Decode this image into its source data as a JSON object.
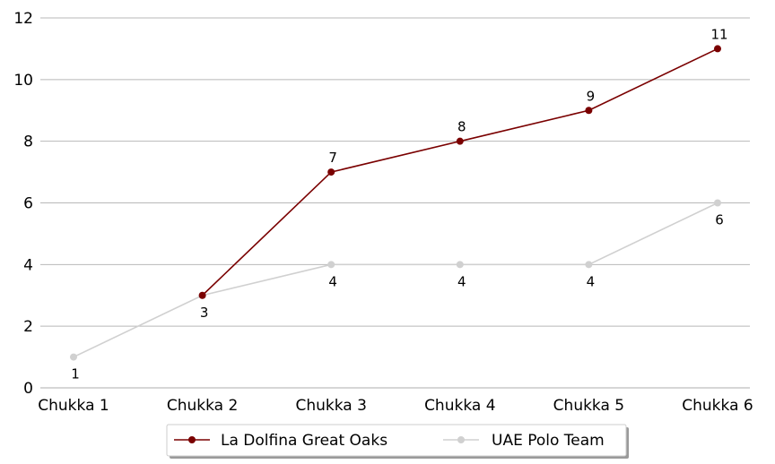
{
  "chart_data": {
    "type": "line",
    "categories": [
      "Chukka 1",
      "Chukka 2",
      "Chukka 3",
      "Chukka 4",
      "Chukka 5",
      "Chukka 6"
    ],
    "series": [
      {
        "name": "La Dolfina Great Oaks",
        "color": "#7a0000",
        "values": [
          null,
          3,
          7,
          8,
          9,
          11
        ],
        "labels": [
          null,
          null,
          "7",
          "8",
          "9",
          "11"
        ],
        "label_position": "above"
      },
      {
        "name": "UAE Polo Team",
        "color": "#d0d0d0",
        "values": [
          1,
          3,
          4,
          4,
          4,
          6
        ],
        "labels": [
          "1",
          "3",
          "4",
          "4",
          "4",
          "6"
        ],
        "label_position": "below"
      }
    ],
    "title": "",
    "xlabel": "",
    "ylabel": "",
    "ylim": [
      0,
      12
    ],
    "yticks": [
      "0",
      "2",
      "4",
      "6",
      "8",
      "10",
      "12"
    ],
    "grid": "horizontal",
    "legend_position": "bottom-center"
  }
}
